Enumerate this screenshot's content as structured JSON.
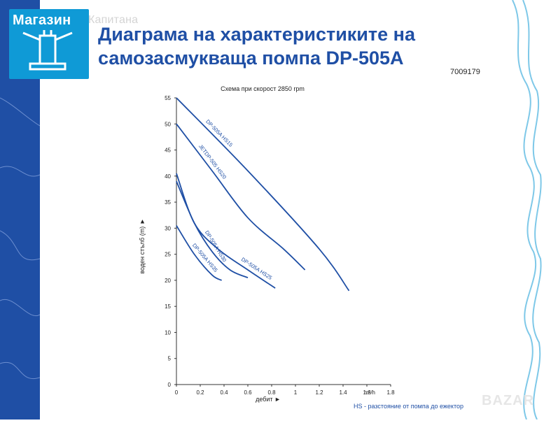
{
  "logo": {
    "brand": "Магазин",
    "brand_extra": "Капитана"
  },
  "title": "Диаграма на характеристиките на самозасмукваща помпа DP-505A",
  "code": "7009179",
  "footnote": "HS - разстояние от помпа до ежектор",
  "watermark": "BAZAR",
  "colors": {
    "accent": "#1f4fa5",
    "logo_bg": "#0f9ad6",
    "curve": "#1f4fa5"
  },
  "chart_data": {
    "type": "line",
    "title": "Схема при скорост 2850 rpm",
    "xlabel": "дебит ►",
    "xunit": "m³/h",
    "ylabel": "воден стълб (m) ►",
    "xlim": [
      0,
      1.8
    ],
    "ylim": [
      0,
      55
    ],
    "xticks": [
      "0",
      "0.2",
      "0.4",
      "0.6",
      "0.8",
      "1",
      "1.2",
      "1.4",
      "1.6",
      "1.8"
    ],
    "yticks": [
      "0",
      "5",
      "10",
      "15",
      "20",
      "25",
      "30",
      "35",
      "40",
      "45",
      "50",
      "55"
    ],
    "grid": false,
    "series": [
      {
        "name": "DP-505A HS15",
        "x": [
          0,
          0.6,
          1.2,
          1.45
        ],
        "y": [
          55,
          41,
          26,
          18
        ]
      },
      {
        "name": "JETDP-505 HS20",
        "x": [
          0,
          0.3,
          0.6,
          0.9,
          1.08
        ],
        "y": [
          50,
          41,
          32,
          26,
          22
        ]
      },
      {
        "name": "DP-505A HS25",
        "x": [
          0,
          0.15,
          0.35,
          0.6,
          0.83
        ],
        "y": [
          40.5,
          31,
          26,
          22,
          18.5
        ]
      },
      {
        "name": "DP-505A HS30",
        "x": [
          0,
          0.15,
          0.3,
          0.45,
          0.6
        ],
        "y": [
          39,
          31,
          25.5,
          22,
          20.5
        ]
      },
      {
        "name": "DP-505A HS35",
        "x": [
          0,
          0.15,
          0.3,
          0.38
        ],
        "y": [
          30.5,
          25,
          21,
          20
        ]
      }
    ]
  }
}
